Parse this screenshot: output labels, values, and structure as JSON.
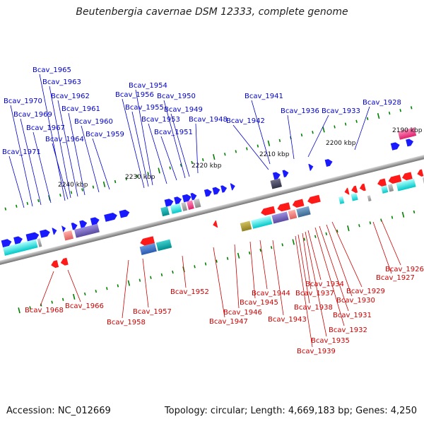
{
  "title": "Beutenbergia cavernae DSM 12333, complete genome",
  "footer": {
    "accession": "Accession: NC_012669",
    "topology": "Topology: circular; Length: 4,669,183 bp; Genes: 4,250"
  },
  "colors": {
    "forward_gene": "#1a1aff",
    "reverse_gene": "#ff1a1a",
    "forward_label": "#0000cc",
    "reverse_label": "#cc0000",
    "backbone": "#888888",
    "tick": "#008000"
  },
  "scale_labels": [
    "2190 kbp",
    "2200 kbp",
    "2210 kbp",
    "2220 kbp",
    "2230 kbp",
    "2240 kbp"
  ],
  "forward_labels": [
    "Bcav_1928",
    "Bcav_1933",
    "Bcav_1936",
    "Bcav_1941",
    "Bcav_1942",
    "Bcav_1948",
    "Bcav_1949",
    "Bcav_1950",
    "Bcav_1951",
    "Bcav_1953",
    "Bcav_1954",
    "Bcav_1955",
    "Bcav_1956",
    "Bcav_1959",
    "Bcav_1960",
    "Bcav_1961",
    "Bcav_1962",
    "Bcav_1963",
    "Bcav_1964",
    "Bcav_1965",
    "Bcav_1967",
    "Bcav_1969",
    "Bcav_1970",
    "Bcav_1971"
  ],
  "reverse_labels": [
    "Bcav_1926",
    "Bcav_1927",
    "Bcav_1929",
    "Bcav_1930",
    "Bcav_1931",
    "Bcav_1932",
    "Bcav_1934",
    "Bcav_1935",
    "Bcav_1937",
    "Bcav_1938",
    "Bcav_1939",
    "Bcav_1943",
    "Bcav_1944",
    "Bcav_1945",
    "Bcav_1946",
    "Bcav_1947",
    "Bcav_1952",
    "Bcav_1957",
    "Bcav_1958",
    "Bcav_1966",
    "Bcav_1968"
  ]
}
